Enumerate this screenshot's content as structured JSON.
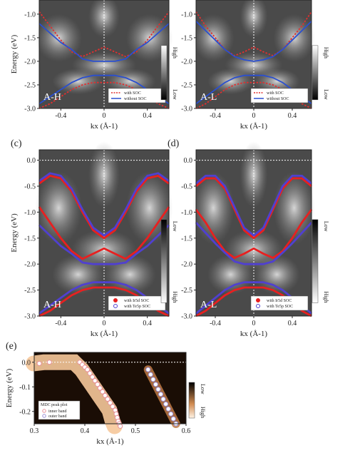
{
  "chart_data": [
    {
      "type": "heatmap",
      "panel_letter": "",
      "inpanel_label": "A-H",
      "ylabel": "Energy (eV)",
      "xlabel": "kx (Å-1)",
      "xlim": [
        -0.6,
        0.6
      ],
      "ylim": [
        -3.0,
        -0.7
      ],
      "x_ticks": [
        "-0.4",
        "0",
        "0.4"
      ],
      "y_ticks": [
        "-1.0",
        "-1.5",
        "-2.0",
        "-2.5",
        "-3.0"
      ],
      "legend": [
        "with SOC",
        "without SOC"
      ],
      "colorbar": [
        "High",
        "Low"
      ],
      "series": [
        {
          "name": "with SOC",
          "style": "dotted",
          "color": "#e03030",
          "x": [
            -0.6,
            -0.5,
            -0.4,
            -0.3,
            -0.2,
            -0.1,
            0.0,
            0.1,
            0.2,
            0.3,
            0.4,
            0.5,
            0.6
          ],
          "y": [
            -0.95,
            -1.25,
            -1.55,
            -1.8,
            -1.9,
            -1.8,
            -1.7,
            -1.8,
            -1.9,
            -1.8,
            -1.55,
            -1.25,
            -0.95
          ]
        },
        {
          "name": "without SOC",
          "style": "solid",
          "color": "#2a4fd0",
          "x": [
            -0.6,
            -0.5,
            -0.4,
            -0.3,
            -0.2,
            -0.1,
            0.0,
            0.1,
            0.2,
            0.3,
            0.4,
            0.5,
            0.6
          ],
          "y": [
            -1.2,
            -1.4,
            -1.6,
            -1.75,
            -1.95,
            -2.0,
            -2.0,
            -2.0,
            -1.95,
            -1.75,
            -1.6,
            -1.4,
            -1.2
          ]
        },
        {
          "name": "with SOC",
          "style": "dotted",
          "color": "#e03030",
          "x": [
            -0.6,
            -0.5,
            -0.4,
            -0.3,
            -0.2,
            -0.1,
            0.0,
            0.1,
            0.2,
            0.3,
            0.4,
            0.5,
            0.6
          ],
          "y": [
            -3.0,
            -2.9,
            -2.75,
            -2.6,
            -2.5,
            -2.45,
            -2.45,
            -2.45,
            -2.5,
            -2.6,
            -2.75,
            -2.9,
            -3.0
          ]
        },
        {
          "name": "without SOC",
          "style": "solid",
          "color": "#2a4fd0",
          "x": [
            -0.6,
            -0.5,
            -0.4,
            -0.3,
            -0.2,
            -0.1,
            0.0,
            0.1,
            0.2,
            0.3,
            0.4,
            0.5,
            0.6
          ],
          "y": [
            -2.9,
            -2.75,
            -2.6,
            -2.45,
            -2.35,
            -2.3,
            -2.3,
            -2.3,
            -2.35,
            -2.45,
            -2.6,
            -2.75,
            -2.9
          ]
        }
      ]
    },
    {
      "type": "heatmap",
      "panel_letter": "",
      "inpanel_label": "A-L",
      "xlabel": "kx (Å-1)",
      "xlim": [
        -0.6,
        0.6
      ],
      "ylim": [
        -3.0,
        -0.7
      ],
      "x_ticks": [
        "-0.4",
        "0",
        "0.4"
      ],
      "y_ticks": [
        "-1.0",
        "-1.5",
        "-2.0",
        "-2.5",
        "-3.0"
      ],
      "legend": [
        "with SOC",
        "without SOC"
      ],
      "colorbar": [
        "High",
        "Low"
      ],
      "series": [
        {
          "name": "with SOC",
          "style": "dotted",
          "color": "#e03030",
          "x": [
            -0.6,
            -0.5,
            -0.4,
            -0.3,
            -0.2,
            -0.1,
            0.0,
            0.1,
            0.2,
            0.3,
            0.4,
            0.5,
            0.6
          ],
          "y": [
            -0.95,
            -1.25,
            -1.5,
            -1.75,
            -1.88,
            -1.8,
            -1.7,
            -1.8,
            -1.88,
            -1.75,
            -1.5,
            -1.25,
            -0.95
          ]
        },
        {
          "name": "without SOC",
          "style": "solid",
          "color": "#2a4fd0",
          "x": [
            -0.6,
            -0.5,
            -0.4,
            -0.3,
            -0.2,
            -0.1,
            0.0,
            0.1,
            0.2,
            0.3,
            0.4,
            0.5,
            0.6
          ],
          "y": [
            -1.15,
            -1.35,
            -1.55,
            -1.75,
            -1.9,
            -1.97,
            -2.0,
            -1.97,
            -1.9,
            -1.75,
            -1.55,
            -1.35,
            -1.15
          ]
        },
        {
          "name": "with SOC",
          "style": "dotted",
          "color": "#e03030",
          "x": [
            -0.6,
            -0.5,
            -0.4,
            -0.3,
            -0.2,
            -0.1,
            0.0,
            0.1,
            0.2,
            0.3,
            0.4,
            0.5,
            0.6
          ],
          "y": [
            -3.0,
            -2.9,
            -2.75,
            -2.6,
            -2.5,
            -2.45,
            -2.45,
            -2.45,
            -2.5,
            -2.6,
            -2.75,
            -2.9,
            -3.0
          ]
        },
        {
          "name": "without SOC",
          "style": "solid",
          "color": "#2a4fd0",
          "x": [
            -0.6,
            -0.5,
            -0.4,
            -0.3,
            -0.2,
            -0.1,
            0.0,
            0.1,
            0.2,
            0.3,
            0.4,
            0.5,
            0.6
          ],
          "y": [
            -2.9,
            -2.75,
            -2.6,
            -2.45,
            -2.35,
            -2.3,
            -2.3,
            -2.3,
            -2.35,
            -2.45,
            -2.6,
            -2.75,
            -2.9
          ]
        }
      ]
    },
    {
      "type": "heatmap",
      "panel_letter": "(c)",
      "inpanel_label": "A-H",
      "ylabel": "Energy (eV)",
      "xlabel": "kx (Å-1)",
      "xlim": [
        -0.6,
        0.6
      ],
      "ylim": [
        -3.0,
        0.2
      ],
      "x_ticks": [
        "-0.4",
        "0",
        "0.4"
      ],
      "y_ticks": [
        "0.0",
        "-0.5",
        "-1.0",
        "-1.5",
        "-2.0",
        "-2.5",
        "-3.0"
      ],
      "legend": [
        "with Ir5d SOC",
        "with Te5p SOC"
      ],
      "colorbar": [
        "Low",
        "High"
      ],
      "series": [
        {
          "name": "with Ir5d SOC",
          "color": "#e82020",
          "x": [
            -0.6,
            -0.5,
            -0.4,
            -0.3,
            -0.2,
            -0.1,
            0.0,
            0.1,
            0.2,
            0.3,
            0.4,
            0.5,
            0.6
          ],
          "y": [
            -0.45,
            -0.3,
            -0.35,
            -0.6,
            -1.0,
            -1.35,
            -1.5,
            -1.35,
            -1.0,
            -0.6,
            -0.35,
            -0.3,
            -0.45
          ]
        },
        {
          "name": "with Te5p SOC",
          "color": "#5040d0",
          "x": [
            -0.6,
            -0.5,
            -0.4,
            -0.3,
            -0.2,
            -0.1,
            0.0,
            0.1,
            0.2,
            0.3,
            0.4,
            0.5,
            0.6
          ],
          "y": [
            -0.4,
            -0.25,
            -0.3,
            -0.55,
            -0.95,
            -1.3,
            -1.45,
            -1.3,
            -0.95,
            -0.55,
            -0.3,
            -0.25,
            -0.4
          ]
        },
        {
          "name": "with Ir5d SOC",
          "color": "#e82020",
          "x": [
            -0.6,
            -0.5,
            -0.4,
            -0.3,
            -0.2,
            -0.1,
            0.0,
            0.1,
            0.2,
            0.3,
            0.4,
            0.5,
            0.6
          ],
          "y": [
            -0.9,
            -1.2,
            -1.5,
            -1.75,
            -1.9,
            -1.8,
            -1.7,
            -1.8,
            -1.9,
            -1.75,
            -1.5,
            -1.2,
            -0.9
          ]
        },
        {
          "name": "with Te5p SOC",
          "color": "#5040d0",
          "x": [
            -0.6,
            -0.5,
            -0.4,
            -0.3,
            -0.2,
            -0.1,
            0.0,
            0.1,
            0.2,
            0.3,
            0.4,
            0.5,
            0.6
          ],
          "y": [
            -1.25,
            -1.45,
            -1.65,
            -1.8,
            -1.97,
            -2.0,
            -2.0,
            -2.0,
            -1.97,
            -1.8,
            -1.65,
            -1.45,
            -1.25
          ]
        },
        {
          "name": "with Ir5d SOC",
          "color": "#e82020",
          "x": [
            -0.6,
            -0.5,
            -0.4,
            -0.3,
            -0.2,
            -0.1,
            0.0,
            0.1,
            0.2,
            0.3,
            0.4,
            0.5,
            0.6
          ],
          "y": [
            -3.0,
            -2.9,
            -2.75,
            -2.6,
            -2.5,
            -2.45,
            -2.45,
            -2.45,
            -2.5,
            -2.6,
            -2.75,
            -2.9,
            -3.0
          ]
        },
        {
          "name": "with Te5p SOC",
          "color": "#5040d0",
          "x": [
            -0.6,
            -0.5,
            -0.4,
            -0.3,
            -0.2,
            -0.1,
            0.0,
            0.1,
            0.2,
            0.3,
            0.4,
            0.5,
            0.6
          ],
          "y": [
            -2.95,
            -2.8,
            -2.65,
            -2.5,
            -2.4,
            -2.35,
            -2.35,
            -2.35,
            -2.4,
            -2.5,
            -2.65,
            -2.8,
            -2.95
          ]
        }
      ]
    },
    {
      "type": "heatmap",
      "panel_letter": "(d)",
      "inpanel_label": "A-L",
      "xlabel": "kx (Å-1)",
      "xlim": [
        -0.6,
        0.6
      ],
      "ylim": [
        -3.0,
        0.2
      ],
      "x_ticks": [
        "-0.4",
        "0",
        "0.4"
      ],
      "y_ticks": [
        "0.0",
        "-0.5",
        "-1.0",
        "-1.5",
        "-2.0",
        "-2.5",
        "-3.0"
      ],
      "legend": [
        "with Ir5d SOC",
        "with Te5p SOC"
      ],
      "colorbar": [
        "Low",
        "High"
      ],
      "series": [
        {
          "name": "with Ir5d SOC",
          "color": "#e82020",
          "x": [
            -0.6,
            -0.5,
            -0.4,
            -0.3,
            -0.2,
            -0.1,
            0.0,
            0.1,
            0.2,
            0.3,
            0.4,
            0.5,
            0.6
          ],
          "y": [
            -0.5,
            -0.35,
            -0.35,
            -0.55,
            -0.95,
            -1.35,
            -1.5,
            -1.35,
            -0.95,
            -0.55,
            -0.35,
            -0.35,
            -0.5
          ]
        },
        {
          "name": "with Te5p SOC",
          "color": "#5040d0",
          "x": [
            -0.6,
            -0.5,
            -0.4,
            -0.3,
            -0.2,
            -0.1,
            0.0,
            0.1,
            0.2,
            0.3,
            0.4,
            0.5,
            0.6
          ],
          "y": [
            -0.45,
            -0.3,
            -0.3,
            -0.5,
            -0.9,
            -1.3,
            -1.45,
            -1.3,
            -0.9,
            -0.5,
            -0.3,
            -0.3,
            -0.45
          ]
        },
        {
          "name": "with Ir5d SOC",
          "color": "#e82020",
          "x": [
            -0.6,
            -0.5,
            -0.4,
            -0.3,
            -0.2,
            -0.1,
            0.0,
            0.1,
            0.2,
            0.3,
            0.4,
            0.5,
            0.6
          ],
          "y": [
            -0.95,
            -1.2,
            -1.5,
            -1.75,
            -1.88,
            -1.8,
            -1.7,
            -1.8,
            -1.88,
            -1.75,
            -1.5,
            -1.2,
            -0.95
          ]
        },
        {
          "name": "with Te5p SOC",
          "color": "#5040d0",
          "x": [
            -0.6,
            -0.5,
            -0.4,
            -0.3,
            -0.2,
            -0.1,
            0.0,
            0.1,
            0.2,
            0.3,
            0.4,
            0.5,
            0.6
          ],
          "y": [
            -1.2,
            -1.4,
            -1.6,
            -1.78,
            -1.95,
            -2.0,
            -2.0,
            -2.0,
            -1.95,
            -1.78,
            -1.6,
            -1.4,
            -1.2
          ]
        },
        {
          "name": "with Ir5d SOC",
          "color": "#e82020",
          "x": [
            -0.6,
            -0.5,
            -0.4,
            -0.3,
            -0.2,
            -0.1,
            0.0,
            0.1,
            0.2,
            0.3,
            0.4,
            0.5,
            0.6
          ],
          "y": [
            -3.0,
            -2.9,
            -2.75,
            -2.6,
            -2.5,
            -2.45,
            -2.45,
            -2.45,
            -2.5,
            -2.6,
            -2.75,
            -2.9,
            -3.0
          ]
        },
        {
          "name": "with Te5p SOC",
          "color": "#5040d0",
          "x": [
            -0.6,
            -0.5,
            -0.4,
            -0.3,
            -0.2,
            -0.1,
            0.0,
            0.1,
            0.2,
            0.3,
            0.4,
            0.5,
            0.6
          ],
          "y": [
            -2.95,
            -2.8,
            -2.65,
            -2.5,
            -2.4,
            -2.35,
            -2.35,
            -2.35,
            -2.4,
            -2.5,
            -2.65,
            -2.8,
            -2.95
          ]
        }
      ]
    },
    {
      "type": "scatter",
      "panel_letter": "(e)",
      "ylabel": "Energy (eV)",
      "xlabel": "kx (Å-1)",
      "xlim": [
        0.3,
        0.6
      ],
      "ylim": [
        -0.25,
        0.04
      ],
      "x_ticks": [
        "0.3",
        "0.4",
        "0.5",
        "0.6"
      ],
      "y_ticks": [
        "0.0",
        "-0.1",
        "-0.2"
      ],
      "legend_title": "MDC peak plot",
      "legend": [
        "inner band",
        "outer band"
      ],
      "colorbar": [
        "Low",
        "High"
      ],
      "series": [
        {
          "name": "inner band",
          "color": "#e8909a",
          "x": [
            0.31,
            0.33,
            0.39,
            0.395,
            0.4,
            0.405,
            0.41,
            0.415,
            0.42,
            0.425,
            0.43,
            0.435,
            0.44,
            0.445,
            0.45,
            0.455,
            0.46,
            0.462,
            0.464,
            0.466,
            0.468,
            0.47
          ],
          "y": [
            -0.005,
            0.0,
            0.0,
            -0.01,
            -0.02,
            -0.03,
            -0.045,
            -0.06,
            -0.075,
            -0.09,
            -0.105,
            -0.12,
            -0.135,
            -0.15,
            -0.165,
            -0.18,
            -0.195,
            -0.21,
            -0.225,
            -0.24,
            -0.25,
            -0.26
          ]
        },
        {
          "name": "outer band",
          "color": "#9a90d8",
          "x": [
            0.525,
            0.53,
            0.535,
            0.54,
            0.545,
            0.55,
            0.555,
            0.56,
            0.565,
            0.57,
            0.575,
            0.58
          ],
          "y": [
            -0.03,
            -0.05,
            -0.07,
            -0.09,
            -0.11,
            -0.13,
            -0.15,
            -0.17,
            -0.19,
            -0.21,
            -0.23,
            -0.25
          ]
        }
      ]
    }
  ]
}
